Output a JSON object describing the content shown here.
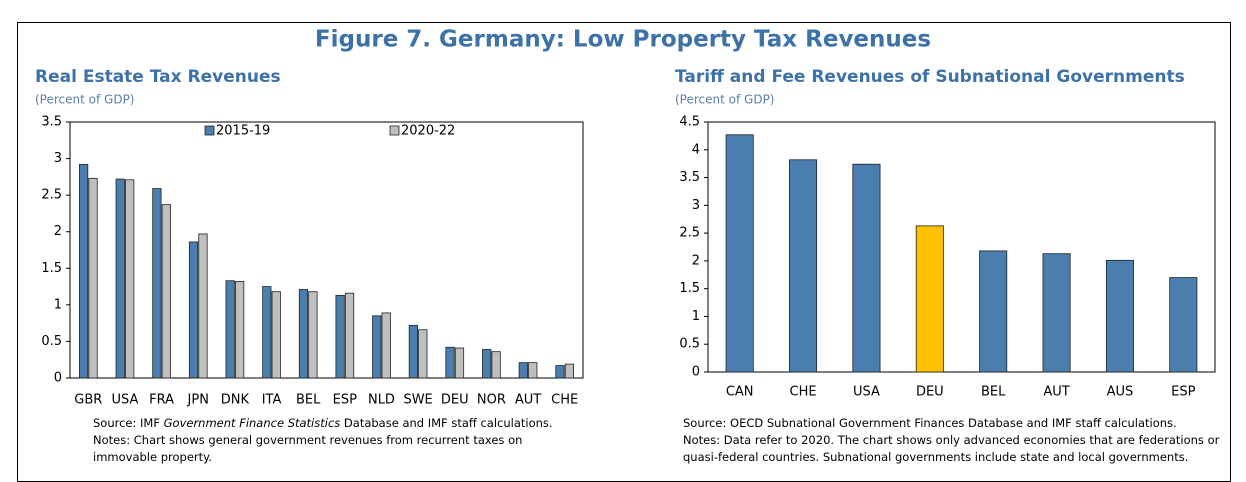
{
  "title": "Figure 7. Germany: Low Property Tax Revenues",
  "chart_data": [
    {
      "type": "bar",
      "title": "Real Estate Tax Revenues",
      "subtitle": "(Percent of GDP)",
      "categories": [
        "GBR",
        "USA",
        "FRA",
        "JPN",
        "DNK",
        "ITA",
        "BEL",
        "ESP",
        "NLD",
        "SWE",
        "DEU",
        "NOR",
        "AUT",
        "CHE"
      ],
      "series": [
        {
          "name": "2015-19",
          "color": "#4a7eaf",
          "values": [
            2.92,
            2.72,
            2.59,
            1.86,
            1.33,
            1.25,
            1.21,
            1.13,
            0.85,
            0.72,
            0.42,
            0.39,
            0.21,
            0.17
          ]
        },
        {
          "name": "2020-22",
          "color": "#bfbfbf",
          "values": [
            2.73,
            2.71,
            2.37,
            1.97,
            1.32,
            1.18,
            1.18,
            1.16,
            0.89,
            0.66,
            0.41,
            0.36,
            0.21,
            0.19
          ]
        }
      ],
      "ylim": [
        0,
        3.5
      ],
      "yticks": [
        0,
        0.5,
        1,
        1.5,
        2,
        2.5,
        3,
        3.5
      ],
      "legend": "top",
      "source": [
        "Source: IMF ",
        "Government Finance Statistics",
        " Database and IMF staff calculations."
      ],
      "notes": "Notes: Chart shows general government revenues from recurrent taxes on immovable property."
    },
    {
      "type": "bar",
      "title": "Tariff and Fee Revenues of Subnational Governments",
      "subtitle": "(Percent of GDP)",
      "categories": [
        "CAN",
        "CHE",
        "USA",
        "DEU",
        "BEL",
        "AUT",
        "AUS",
        "ESP"
      ],
      "values": [
        4.27,
        3.82,
        3.74,
        2.63,
        2.18,
        2.13,
        2.01,
        1.7
      ],
      "colors": [
        "#4a7eaf",
        "#4a7eaf",
        "#4a7eaf",
        "#ffc000",
        "#4a7eaf",
        "#4a7eaf",
        "#4a7eaf",
        "#4a7eaf"
      ],
      "ylim": [
        0,
        4.5
      ],
      "yticks": [
        0,
        0.5,
        1,
        1.5,
        2,
        2.5,
        3,
        3.5,
        4,
        4.5
      ],
      "source": [
        "Source: OECD Subnational Government Finances Database and IMF staff calculations."
      ],
      "notes": "Notes: Data refer to 2020. The chart shows only advanced economies that are federations or quasi-federal countries. Subnational governments include state and local governments."
    }
  ]
}
